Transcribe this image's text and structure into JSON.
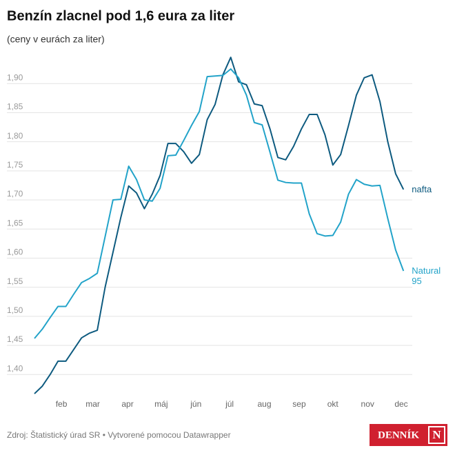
{
  "chart_data": {
    "type": "line",
    "title": "Benzín zlacnel pod 1,6 eura za liter",
    "subtitle": "(ceny v eurách za liter)",
    "source": "Zdroj: Štatistický úrad SR • Vytvorené pomocou Datawrapper",
    "logo": "DENNÍK",
    "logo_mark": "N",
    "x": [
      7,
      14,
      21,
      28,
      35,
      42,
      49,
      56,
      63,
      70,
      77,
      84,
      91,
      98,
      105,
      112,
      119,
      126,
      133,
      140,
      147,
      154,
      161,
      168,
      175,
      182,
      189,
      196,
      203,
      210,
      217,
      224,
      231,
      238,
      245,
      252,
      259,
      266,
      273,
      280,
      287,
      294,
      301,
      308,
      315,
      322,
      329,
      336
    ],
    "xlim": [
      0,
      342
    ],
    "xticks": [
      {
        "value": 31,
        "label": "feb"
      },
      {
        "value": 59,
        "label": "mar"
      },
      {
        "value": 90,
        "label": "apr"
      },
      {
        "value": 120,
        "label": "máj"
      },
      {
        "value": 151,
        "label": "jún"
      },
      {
        "value": 181,
        "label": "júl"
      },
      {
        "value": 212,
        "label": "aug"
      },
      {
        "value": 243,
        "label": "sep"
      },
      {
        "value": 273,
        "label": "okt"
      },
      {
        "value": 304,
        "label": "nov"
      },
      {
        "value": 334,
        "label": "dec"
      }
    ],
    "ylim": [
      1.36,
      1.95
    ],
    "yticks": [
      {
        "value": 1.4,
        "label": "1,40"
      },
      {
        "value": 1.45,
        "label": "1,45"
      },
      {
        "value": 1.5,
        "label": "1,50"
      },
      {
        "value": 1.55,
        "label": "1,55"
      },
      {
        "value": 1.6,
        "label": "1,60"
      },
      {
        "value": 1.65,
        "label": "1,65"
      },
      {
        "value": 1.7,
        "label": "1,70"
      },
      {
        "value": 1.75,
        "label": "1,75"
      },
      {
        "value": 1.8,
        "label": "1,80"
      },
      {
        "value": 1.85,
        "label": "1,85"
      },
      {
        "value": 1.9,
        "label": "1,90"
      }
    ],
    "grid": true,
    "series": [
      {
        "name": "nafta",
        "color": "#0d5a7f",
        "values": [
          1.367,
          1.38,
          1.4,
          1.423,
          1.423,
          1.443,
          1.463,
          1.471,
          1.476,
          1.55,
          1.61,
          1.67,
          1.724,
          1.712,
          1.685,
          1.71,
          1.742,
          1.797,
          1.797,
          1.783,
          1.763,
          1.778,
          1.838,
          1.864,
          1.915,
          1.945,
          1.903,
          1.898,
          1.865,
          1.862,
          1.822,
          1.773,
          1.769,
          1.792,
          1.822,
          1.847,
          1.847,
          1.812,
          1.76,
          1.778,
          1.828,
          1.88,
          1.91,
          1.915,
          1.869,
          1.8,
          1.745,
          1.718
        ]
      },
      {
        "name": "Natural 95",
        "color": "#22a3c9",
        "values": [
          1.462,
          1.478,
          1.498,
          1.517,
          1.517,
          1.538,
          1.558,
          1.565,
          1.574,
          1.637,
          1.7,
          1.701,
          1.758,
          1.735,
          1.7,
          1.698,
          1.72,
          1.776,
          1.777,
          1.802,
          1.828,
          1.852,
          1.912,
          1.913,
          1.914,
          1.925,
          1.91,
          1.88,
          1.833,
          1.829,
          1.782,
          1.734,
          1.73,
          1.729,
          1.729,
          1.676,
          1.642,
          1.638,
          1.639,
          1.662,
          1.71,
          1.735,
          1.727,
          1.724,
          1.725,
          1.668,
          1.614,
          1.578
        ]
      }
    ]
  }
}
